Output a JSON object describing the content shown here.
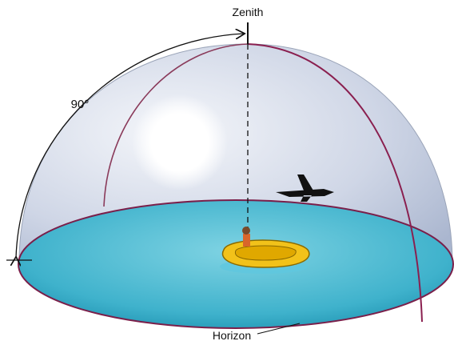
{
  "labels": {
    "zenith": "Zenith",
    "angle": "90°",
    "horizon": "Horizon"
  }
}
